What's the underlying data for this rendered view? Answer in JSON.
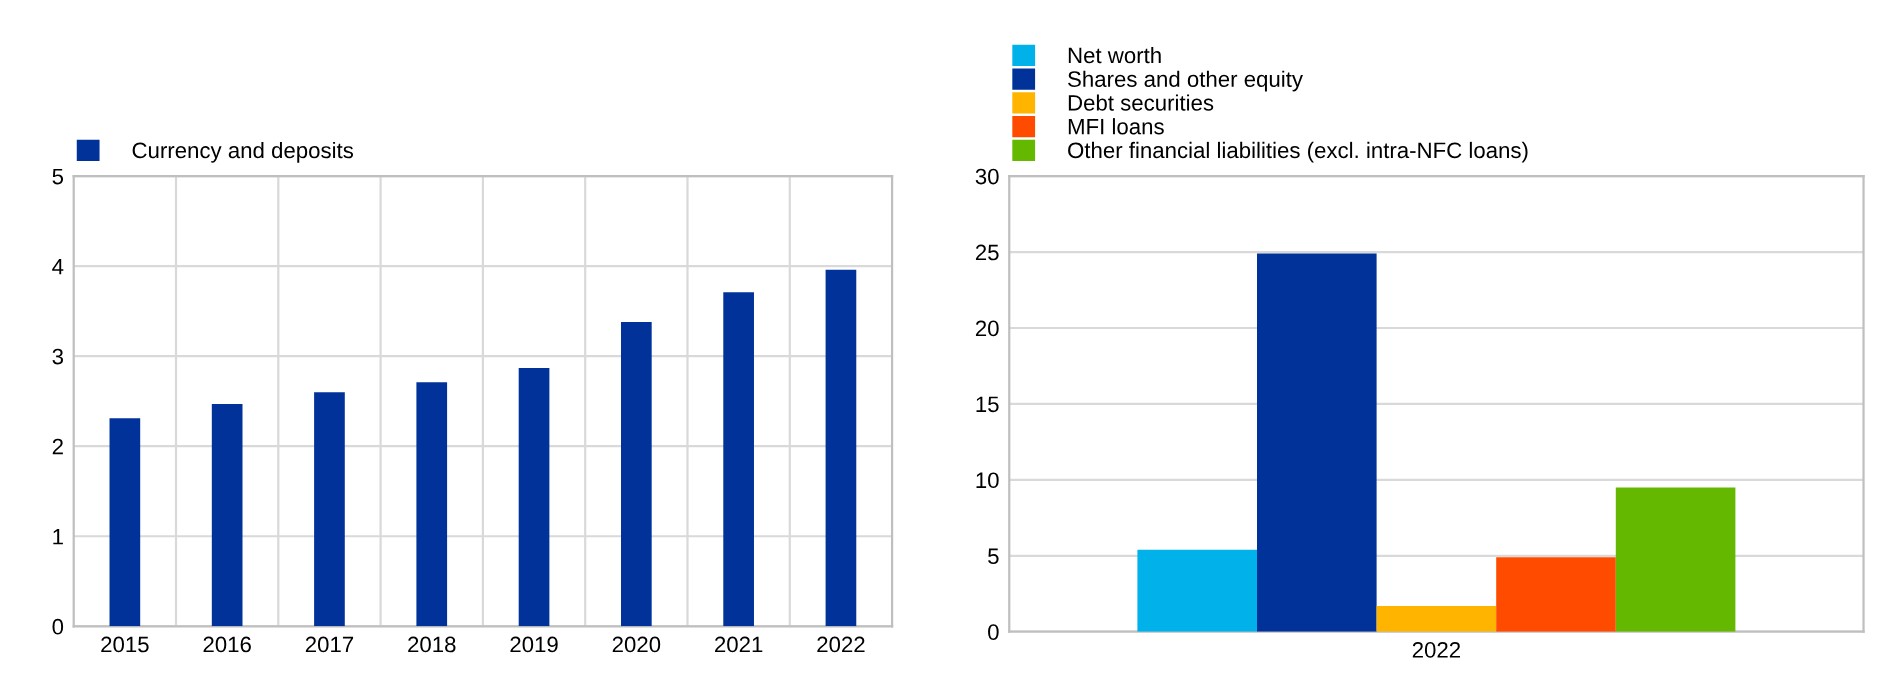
{
  "chart_data": [
    {
      "type": "bar",
      "categories": [
        "2015",
        "2016",
        "2017",
        "2018",
        "2019",
        "2020",
        "2021",
        "2022"
      ],
      "series": [
        {
          "name": "Currency and deposits",
          "color": "#003299",
          "values": [
            2.31,
            2.47,
            2.6,
            2.71,
            2.87,
            3.38,
            3.71,
            3.96
          ]
        }
      ],
      "ylim": [
        0,
        5
      ],
      "yticks": [
        0,
        1,
        2,
        3,
        4,
        5
      ],
      "grid": true,
      "legend": "top"
    },
    {
      "type": "bar",
      "categories": [
        "2022"
      ],
      "series": [
        {
          "name": "Net worth",
          "color": "#00b1ea",
          "values": [
            5.4
          ]
        },
        {
          "name": "Shares and other equity",
          "color": "#003299",
          "values": [
            24.9
          ]
        },
        {
          "name": "Debt securities",
          "color": "#ffb400",
          "values": [
            1.7
          ]
        },
        {
          "name": "MFI loans",
          "color": "#ff4b00",
          "values": [
            4.9
          ]
        },
        {
          "name": "Other financial liabilities (excl. intra-NFC loans)",
          "color": "#65b800",
          "values": [
            9.5
          ]
        }
      ],
      "ylim": [
        0,
        30
      ],
      "yticks": [
        0,
        5,
        10,
        15,
        20,
        25,
        30
      ],
      "grid": "y",
      "legend": "top"
    }
  ]
}
